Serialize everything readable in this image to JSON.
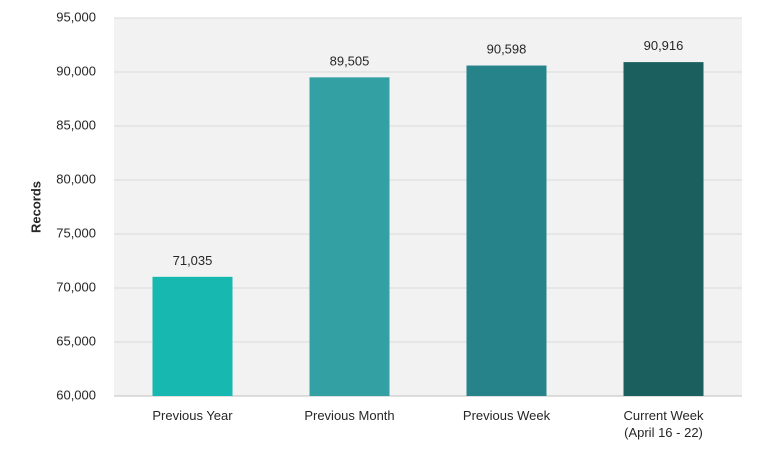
{
  "chart_data": {
    "type": "bar",
    "title": "",
    "xlabel": "",
    "ylabel": "Records",
    "ylim": [
      60000,
      95000
    ],
    "ytick_step": 5000,
    "yticks": [
      "60,000",
      "65,000",
      "70,000",
      "75,000",
      "80,000",
      "85,000",
      "90,000",
      "95,000"
    ],
    "grid": true,
    "categories": [
      [
        "Previous Year"
      ],
      [
        "Previous Month"
      ],
      [
        "Previous Week"
      ],
      [
        "Current Week",
        "(April 16 - 22)"
      ]
    ],
    "values": [
      71035,
      89505,
      90598,
      90916
    ],
    "value_labels": [
      "71,035",
      "89,505",
      "90,598",
      "90,916"
    ],
    "colors": [
      "#16b8b0",
      "#33a0a3",
      "#26838a",
      "#1b605e"
    ]
  }
}
